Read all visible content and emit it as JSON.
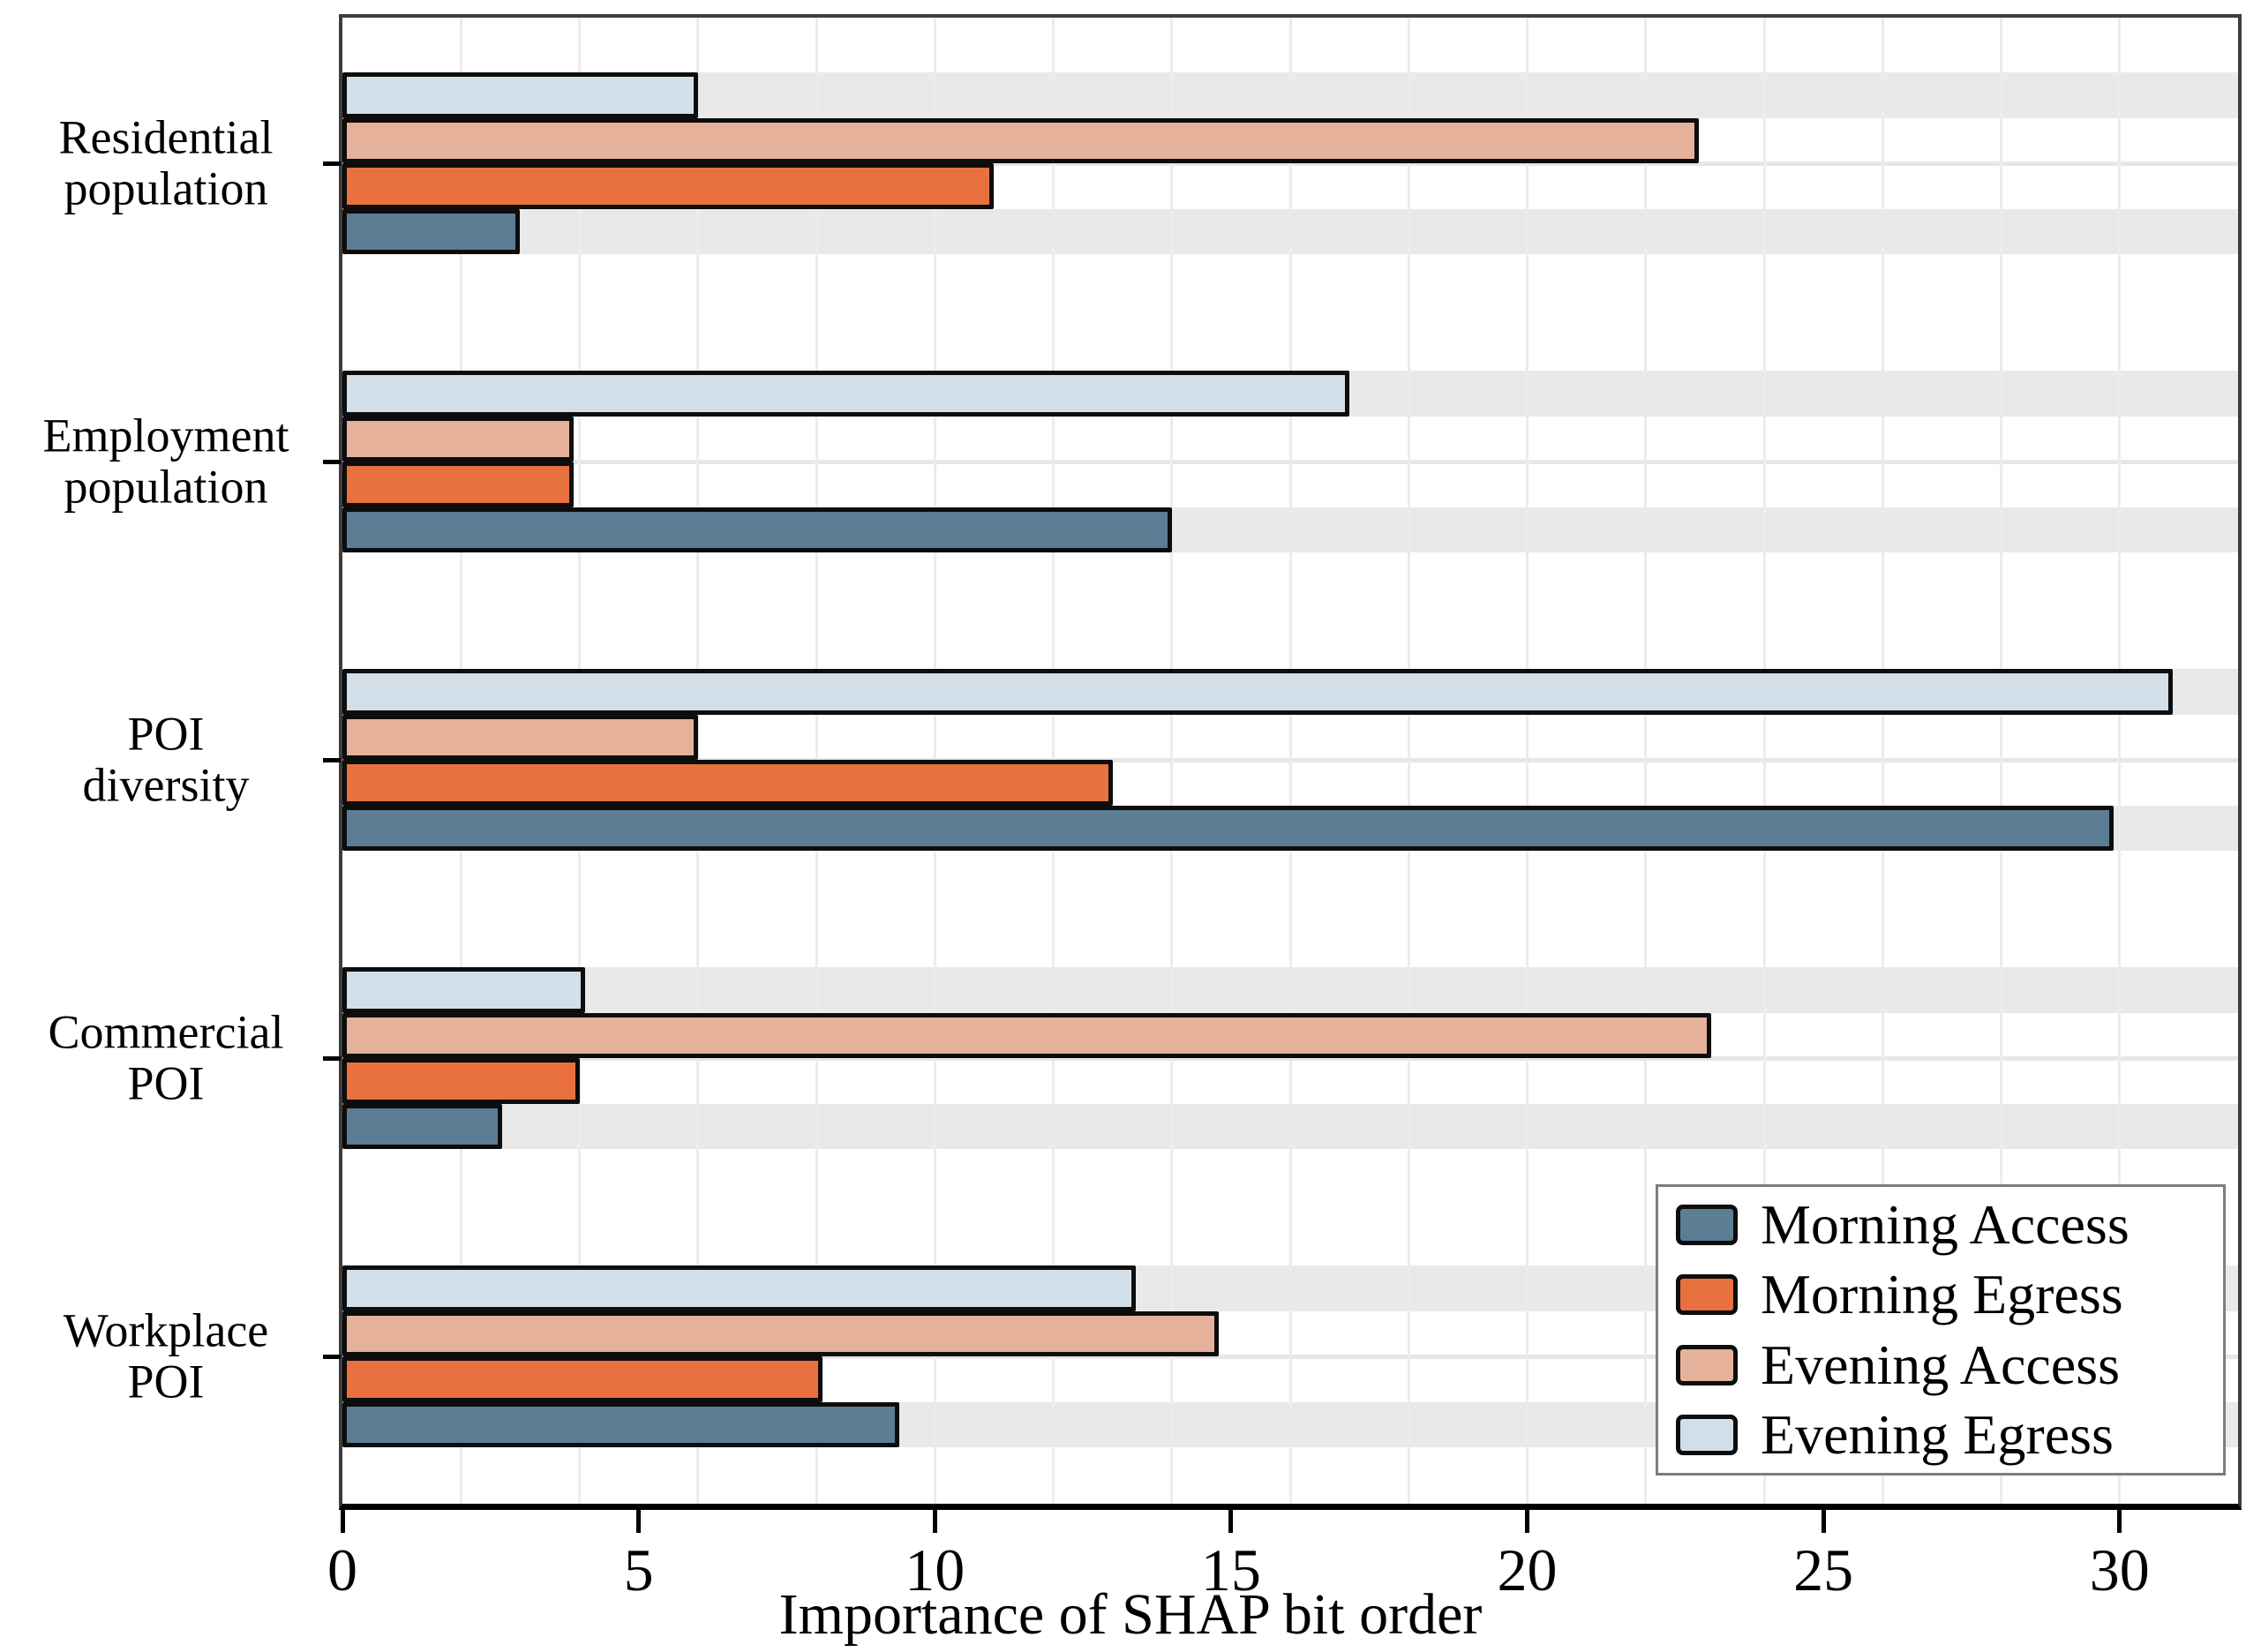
{
  "chart_data": {
    "type": "bar",
    "orientation": "horizontal",
    "title": "",
    "xlabel": "Importance of SHAP bit order",
    "ylabel": "",
    "xlim": [
      0,
      32
    ],
    "xticks": [
      0,
      5,
      10,
      15,
      20,
      25,
      30
    ],
    "gridline_step": 2,
    "grid": true,
    "legend_position": "lower right",
    "categories": [
      "Residential\npopulation",
      "Employment\npopulation",
      "POI\ndiversity",
      "Commercial\nPOI",
      "Workplace\nPOI"
    ],
    "series": [
      {
        "name": "Morning Access",
        "color": "#5d7d95",
        "values": [
          3.0,
          14.0,
          29.9,
          2.7,
          9.4
        ]
      },
      {
        "name": "Morning Egress",
        "color": "#e8713f",
        "values": [
          11.0,
          3.9,
          13.0,
          4.0,
          8.1
        ]
      },
      {
        "name": "Evening Access",
        "color": "#e5b19b",
        "values": [
          22.9,
          3.9,
          6.0,
          23.1,
          14.8
        ]
      },
      {
        "name": "Evening Egress",
        "color": "#d3dfe8",
        "values": [
          6.0,
          17.0,
          30.9,
          4.1,
          13.4
        ]
      }
    ],
    "row_order_top_to_bottom": [
      "Evening Egress",
      "Evening Access",
      "Morning Egress",
      "Morning Access"
    ],
    "striped_rows": [
      "Evening Egress",
      "Morning Access"
    ],
    "colors": {
      "stripe": "#e9e9e9",
      "vertical_gridline": "#ececec",
      "horizontal_gridline": "#e7e7e7",
      "bar_edge": "#0d0d0d",
      "axis_line": "#000000",
      "plot_border": "#3d3d3d",
      "background": "#ffffff"
    }
  },
  "legend": {
    "items": [
      "Morning Access",
      "Morning Egress",
      "Evening Access",
      "Evening Egress"
    ]
  }
}
